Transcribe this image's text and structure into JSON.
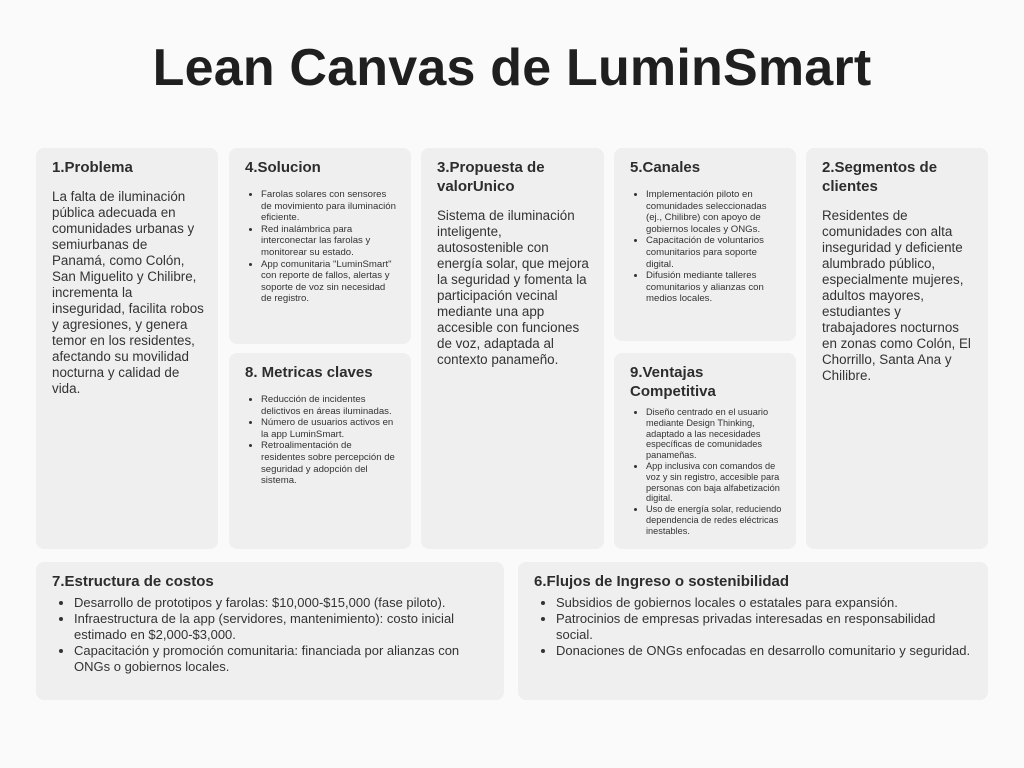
{
  "title": "Lean Canvas de LuminSmart",
  "problema": {
    "heading": "1.Problema",
    "text": "La falta de iluminación pública adecuada en comunidades urbanas y semiurbanas de Panamá, como Colón, San Miguelito y Chilibre, incrementa la inseguridad, facilita robos y agresiones, y genera temor en los residentes, afectando su movilidad nocturna y calidad de vida."
  },
  "solucion": {
    "heading": "4.Solucion",
    "items": [
      "Farolas solares con sensores de movimiento para iluminación eficiente.",
      "Red inalámbrica para interconectar las farolas y monitorear su estado.",
      "App comunitaria \"LuminSmart\" con reporte de fallos, alertas y soporte de voz sin necesidad de registro."
    ]
  },
  "metricas": {
    "heading": "8. Metricas claves",
    "items": [
      "Reducción de incidentes delictivos en áreas iluminadas.",
      "Número de usuarios activos en la app LuminSmart.",
      "Retroalimentación de residentes sobre percepción de seguridad y adopción del sistema."
    ]
  },
  "propuesta": {
    "heading": "3.Propuesta de valorUnico",
    "text": "Sistema de iluminación inteligente, autosostenible con energía solar, que mejora la seguridad y fomenta la participación vecinal mediante una app accesible con funciones de voz, adaptada al contexto panameño."
  },
  "canales": {
    "heading": "5.Canales",
    "items": [
      "Implementación piloto en comunidades seleccionadas (ej., Chilibre) con apoyo de gobiernos locales y ONGs.",
      "Capacitación de voluntarios comunitarios para soporte digital.",
      "Difusión mediante talleres comunitarios y alianzas con medios locales."
    ]
  },
  "ventajas": {
    "heading": "9.Ventajas Competitiva",
    "items": [
      "Diseño centrado en el usuario mediante Design Thinking, adaptado a las necesidades específicas de comunidades panameñas.",
      "App inclusiva con comandos de voz y sin registro, accesible para personas con baja alfabetización digital.",
      "Uso de energía solar, reduciendo dependencia de redes eléctricas inestables."
    ]
  },
  "segmentos": {
    "heading": "2.Segmentos de clientes",
    "text": "Residentes de comunidades con alta inseguridad y deficiente alumbrado público, especialmente mujeres, adultos mayores, estudiantes y trabajadores nocturnos en zonas como Colón, El Chorrillo, Santa Ana y Chilibre."
  },
  "costos": {
    "heading": "7.Estructura de costos",
    "items": [
      "Desarrollo de prototipos y farolas: $10,000-$15,000 (fase piloto).",
      "Infraestructura de la app (servidores, mantenimiento): costo inicial estimado en $2,000-$3,000.",
      "Capacitación y promoción comunitaria: financiada por alianzas con ONGs o gobiernos locales."
    ]
  },
  "ingresos": {
    "heading": "6.Flujos de Ingreso o sostenibilidad",
    "items": [
      "Subsidios de gobiernos locales o estatales para expansión.",
      "Patrocinios de empresas privadas interesadas en responsabilidad social.",
      "Donaciones de ONGs enfocadas en desarrollo comunitario y seguridad."
    ]
  }
}
